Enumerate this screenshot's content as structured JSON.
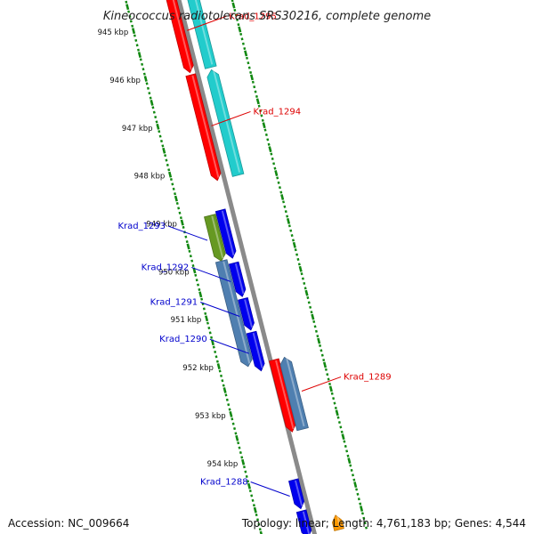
{
  "title": "Kineococcus radiotolerans SRS30216, complete genome",
  "footer": {
    "accession": "Accession: NC_009664",
    "topology": "Topology: linear; Length: 4,761,183 bp; Genes: 4,544"
  },
  "colors": {
    "backbone": "#8a8a8a",
    "tick": "#118811",
    "red_gene": "#ff0000",
    "cyan_gene": "#22cccc",
    "blue_gene": "#0000ee",
    "steel_gene": "#4f7fb0",
    "olive_gene": "#669922",
    "orange_gene": "#ff9900",
    "red_label": "#dd0000",
    "blue_label": "#0000cc"
  },
  "ruler": {
    "labels": [
      {
        "kbp": 945,
        "text": "945 kbp"
      },
      {
        "kbp": 946,
        "text": "946 kbp"
      },
      {
        "kbp": 947,
        "text": "947 kbp"
      },
      {
        "kbp": 948,
        "text": "948 kbp"
      },
      {
        "kbp": 949,
        "text": "949 kbp"
      },
      {
        "kbp": 950,
        "text": "950 kbp"
      },
      {
        "kbp": 951,
        "text": "951 kbp"
      },
      {
        "kbp": 952,
        "text": "952 kbp"
      },
      {
        "kbp": 953,
        "text": "953 kbp"
      },
      {
        "kbp": 954,
        "text": "954 kbp"
      }
    ]
  },
  "genes": [
    {
      "locus": "Krad_1295",
      "strand": "-",
      "start_kbp": 944.42,
      "end_kbp": 946.1,
      "color": "#ff0000",
      "labeled": true
    },
    {
      "locus": "",
      "strand": "+",
      "start_kbp": 944.42,
      "end_kbp": 946.1,
      "color": "#22cccc",
      "labeled": false
    },
    {
      "locus": "Krad_1294",
      "strand": "-",
      "start_kbp": 946.15,
      "end_kbp": 948.35,
      "color": "#ff0000",
      "labeled": true
    },
    {
      "locus": "",
      "strand": "+",
      "start_kbp": 946.15,
      "end_kbp": 948.35,
      "color": "#22cccc",
      "labeled": false
    },
    {
      "locus": "Krad_1293",
      "strand": "-",
      "start_kbp": 949.0,
      "end_kbp": 949.95,
      "color": "#669922",
      "labeled": true
    },
    {
      "locus": "",
      "strand": "-",
      "start_kbp": 949.95,
      "end_kbp": 952.15,
      "color": "#4f7fb0",
      "labeled": false
    },
    {
      "locus": "",
      "strand": "-",
      "start_kbp": 948.95,
      "end_kbp": 949.95,
      "color": "#0000ee",
      "labeled": false
    },
    {
      "locus": "Krad_1292",
      "strand": "-",
      "start_kbp": 950.05,
      "end_kbp": 950.75,
      "color": "#0000ee",
      "labeled": true
    },
    {
      "locus": "Krad_1291",
      "strand": "-",
      "start_kbp": 950.8,
      "end_kbp": 951.45,
      "color": "#0000ee",
      "labeled": true
    },
    {
      "locus": "Krad_1290",
      "strand": "-",
      "start_kbp": 951.5,
      "end_kbp": 952.3,
      "color": "#0000ee",
      "labeled": true
    },
    {
      "locus": "",
      "strand": "-",
      "start_kbp": 952.15,
      "end_kbp": 953.65,
      "color": "#ff0000",
      "labeled": false
    },
    {
      "locus": "Krad_1289",
      "strand": "+",
      "start_kbp": 952.15,
      "end_kbp": 953.65,
      "color": "#4f7fb0",
      "labeled": true
    },
    {
      "locus": "Krad_1288",
      "strand": "-",
      "start_kbp": 954.6,
      "end_kbp": 955.2,
      "color": "#0000ee",
      "labeled": true
    },
    {
      "locus": "",
      "strand": "-",
      "start_kbp": 955.25,
      "end_kbp": 955.8,
      "color": "#0000ee",
      "labeled": false
    },
    {
      "locus": "",
      "strand": "+",
      "start_kbp": 955.5,
      "end_kbp": 955.8,
      "color": "#ff9900",
      "labeled": false
    }
  ]
}
